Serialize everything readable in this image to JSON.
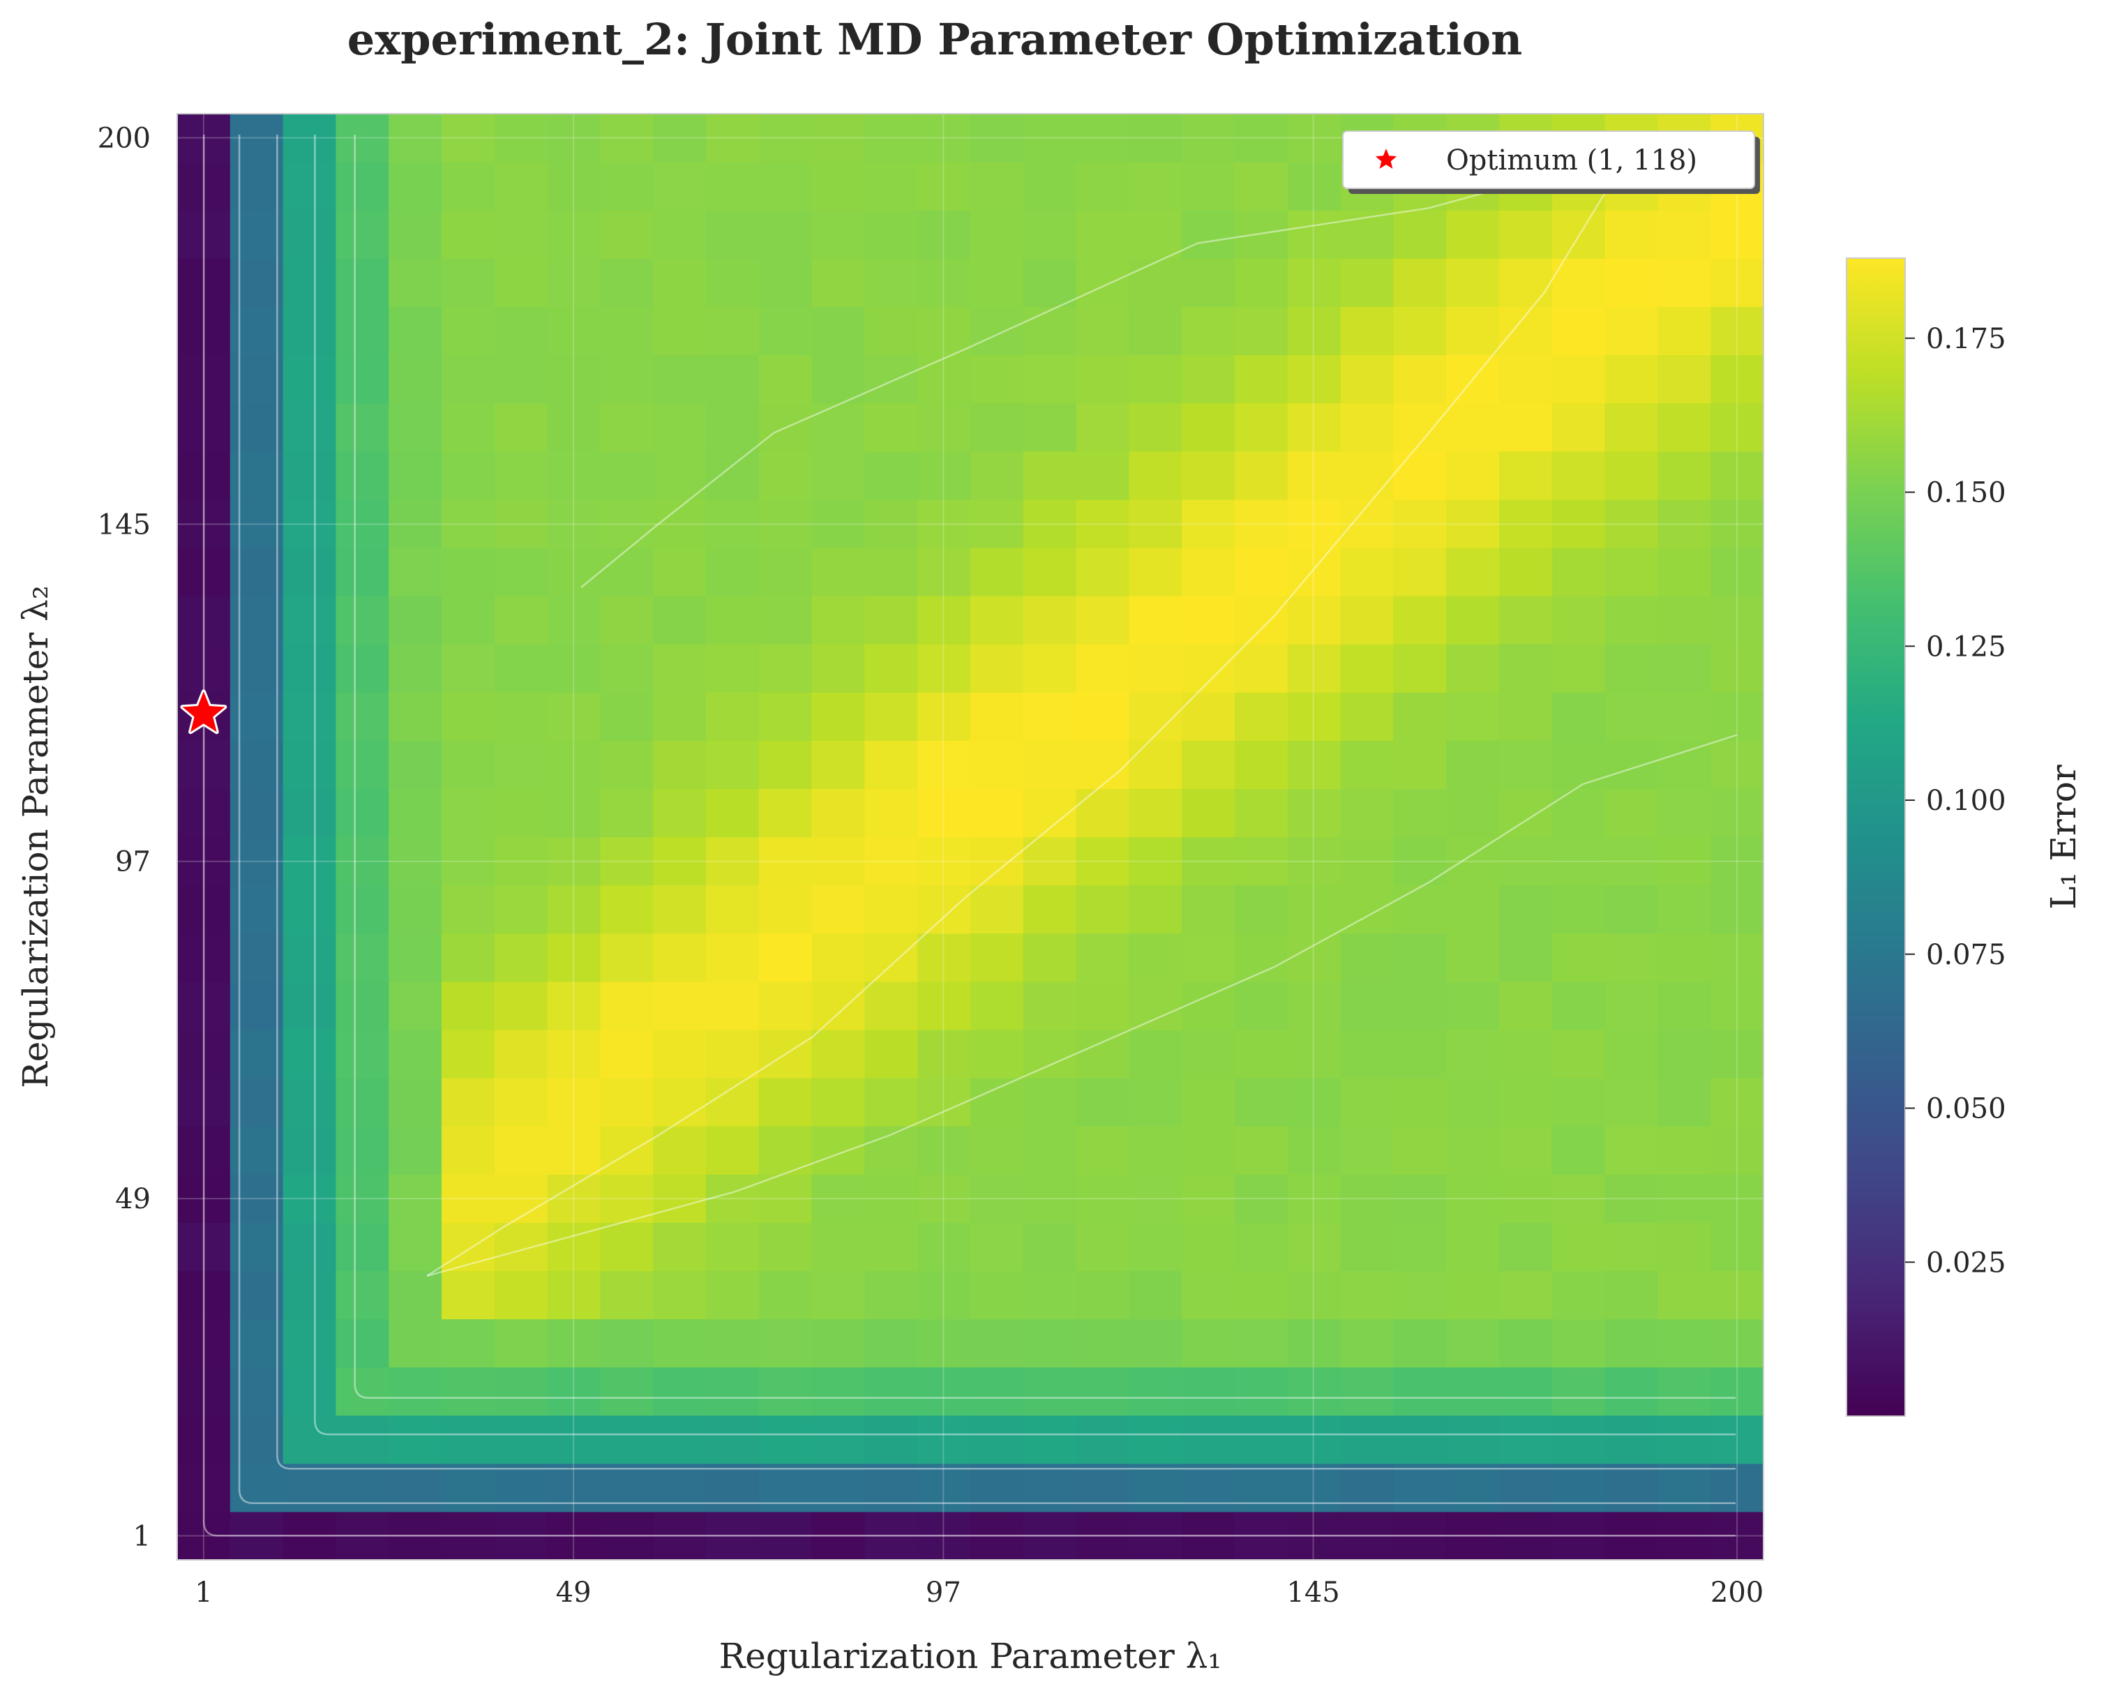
{
  "chart_data": {
    "type": "heatmap",
    "title": "experiment_2: Joint MD Parameter Optimization",
    "xlabel": "Regularization Parameter λ₁",
    "ylabel": "Regularization Parameter λ₂",
    "x_ticks": [
      "1",
      "49",
      "97",
      "145",
      "200"
    ],
    "y_ticks": [
      "1",
      "49",
      "97",
      "145",
      "200"
    ],
    "xlim": [
      1,
      200
    ],
    "ylim": [
      1,
      200
    ],
    "grid_size": 30,
    "colorbar": {
      "label": "L₁ Error",
      "range": [
        0.0,
        0.188
      ],
      "ticks": [
        "0.025",
        "0.050",
        "0.075",
        "0.100",
        "0.125",
        "0.150",
        "0.175"
      ],
      "colormap": "viridis"
    },
    "optimum": {
      "lambda1": 1,
      "lambda2": 118,
      "marker_color": "#ff0000"
    },
    "legend": {
      "label": "Optimum (1, 118)",
      "position": "top-right"
    },
    "error_model": {
      "description_values_l1_error_by_grid_index": "row 0 (λ2≈1) and column 0 (λ1≈1) near 0.005; second row/col ≈0.07; third ≈0.10-0.12; interior 0.15-0.188 peaking along a band",
      "boundary_levels": [
        0.005,
        0.07,
        0.11,
        0.135,
        0.15
      ],
      "interior_min": 0.155,
      "interior_max": 0.188
    },
    "grid": true
  }
}
